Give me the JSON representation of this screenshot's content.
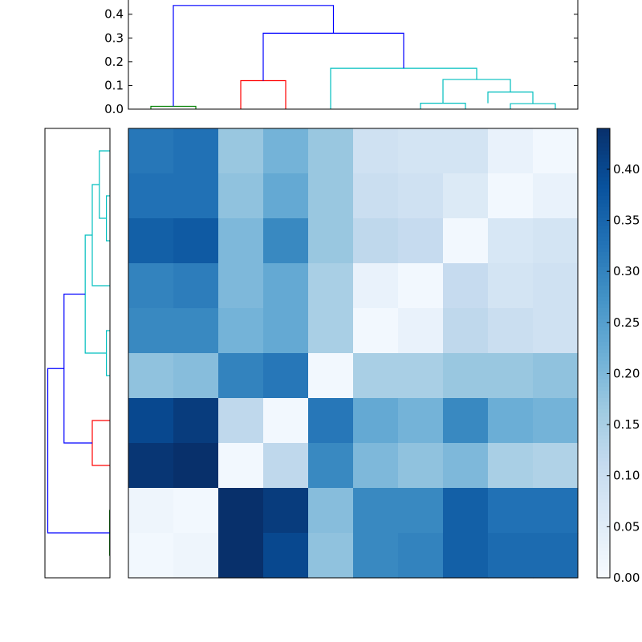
{
  "chart_data": [
    {
      "type": "dendrogram",
      "orientation": "top",
      "ylim": [
        0,
        0.46
      ],
      "yticks": [
        "0.0",
        "0.1",
        "0.2",
        "0.3",
        "0.4"
      ],
      "leaf_positions": [
        1,
        2,
        3,
        4,
        5,
        6,
        7,
        8,
        9,
        10
      ],
      "links": [
        {
          "left": 1,
          "right": 2,
          "height": 0.012,
          "color": "#008000"
        },
        {
          "left": 3,
          "right": 4,
          "height": 0.12,
          "color": "#ff0000"
        },
        {
          "left": 7,
          "right": 8,
          "height": 0.025,
          "color": "#00bfbf"
        },
        {
          "left": 9,
          "right": 10,
          "height": 0.023,
          "color": "#00bfbf"
        },
        {
          "left": 8.5,
          "right": 9.5,
          "height": 0.072,
          "color": "#00bfbf",
          "left_base": 0.025,
          "right_base": 0.023
        },
        {
          "left": 7.5,
          "right": 9.0,
          "height": 0.125,
          "color": "#00bfbf",
          "left_base": 0.025,
          "right_base": 0.072
        },
        {
          "left": 5,
          "right": 8.25,
          "height": 0.172,
          "color": "#00bfbf",
          "left_base": 0,
          "right_base": 0.125
        },
        {
          "left": 3.5,
          "right": 6.625,
          "height": 0.32,
          "color": "#0000ff",
          "left_base": 0.12,
          "right_base": 0.172
        },
        {
          "left": 1.5,
          "right": 5.0625,
          "height": 0.437,
          "color": "#0000ff",
          "left_base": 0.012,
          "right_base": 0.32
        }
      ]
    },
    {
      "type": "dendrogram",
      "orientation": "left",
      "xlim": [
        0,
        0.46
      ],
      "leaf_positions": [
        1,
        2,
        3,
        4,
        5,
        6,
        7,
        8,
        9,
        10
      ],
      "links": [
        {
          "left": 1,
          "right": 2,
          "height": 0.002,
          "color": "#008000"
        },
        {
          "left": 3,
          "right": 4,
          "height": 0.125,
          "color": "#ff0000"
        },
        {
          "left": 5,
          "right": 6,
          "height": 0.025,
          "color": "#00bfbf"
        },
        {
          "left": 8,
          "right": 9,
          "height": 0.025,
          "color": "#00bfbf"
        },
        {
          "left": 8.5,
          "right": 10,
          "height": 0.075,
          "color": "#00bfbf",
          "left_base": 0.025,
          "right_base": 0
        },
        {
          "left": 7,
          "right": 9.25,
          "height": 0.125,
          "color": "#00bfbf",
          "left_base": 0,
          "right_base": 0.075
        },
        {
          "left": 5.5,
          "right": 8.125,
          "height": 0.175,
          "color": "#00bfbf",
          "left_base": 0.025,
          "right_base": 0.125
        },
        {
          "left": 3.5,
          "right": 6.8125,
          "height": 0.325,
          "color": "#0000ff",
          "left_base": 0.125,
          "right_base": 0.175
        },
        {
          "left": 1.5,
          "right": 5.15625,
          "height": 0.44,
          "color": "#0000ff",
          "left_base": 0.002,
          "right_base": 0.325
        }
      ]
    },
    {
      "type": "heatmap",
      "colormap": "Blues",
      "vmin": 0,
      "vmax": 0.44,
      "matrix": [
        [
          0.32,
          0.33,
          0.17,
          0.21,
          0.17,
          0.09,
          0.08,
          0.08,
          0.03,
          0.01
        ],
        [
          0.33,
          0.33,
          0.18,
          0.23,
          0.17,
          0.1,
          0.09,
          0.06,
          0.01,
          0.03
        ],
        [
          0.36,
          0.37,
          0.2,
          0.29,
          0.17,
          0.12,
          0.11,
          0.01,
          0.07,
          0.08
        ],
        [
          0.3,
          0.31,
          0.2,
          0.23,
          0.15,
          0.03,
          0.01,
          0.11,
          0.08,
          0.09
        ],
        [
          0.29,
          0.29,
          0.21,
          0.23,
          0.15,
          0.01,
          0.03,
          0.12,
          0.1,
          0.09
        ],
        [
          0.18,
          0.19,
          0.3,
          0.32,
          0.01,
          0.15,
          0.15,
          0.17,
          0.17,
          0.18
        ],
        [
          0.4,
          0.42,
          0.12,
          0.01,
          0.32,
          0.23,
          0.21,
          0.29,
          0.22,
          0.21
        ],
        [
          0.43,
          0.44,
          0.01,
          0.12,
          0.29,
          0.2,
          0.18,
          0.2,
          0.15,
          0.14
        ],
        [
          0.02,
          0.01,
          0.44,
          0.42,
          0.19,
          0.29,
          0.29,
          0.36,
          0.33,
          0.33
        ],
        [
          0.01,
          0.02,
          0.44,
          0.4,
          0.18,
          0.29,
          0.3,
          0.36,
          0.34,
          0.34
        ]
      ]
    },
    {
      "type": "colorbar",
      "colormap": "Blues",
      "range": [
        0,
        0.44
      ],
      "ticks": [
        0.0,
        0.05,
        0.1,
        0.15,
        0.2,
        0.25,
        0.3,
        0.35,
        0.4
      ],
      "tick_labels": [
        "0.00",
        "0.05",
        "0.10",
        "0.15",
        "0.20",
        "0.25",
        "0.30",
        "0.35",
        "0.40"
      ]
    }
  ]
}
